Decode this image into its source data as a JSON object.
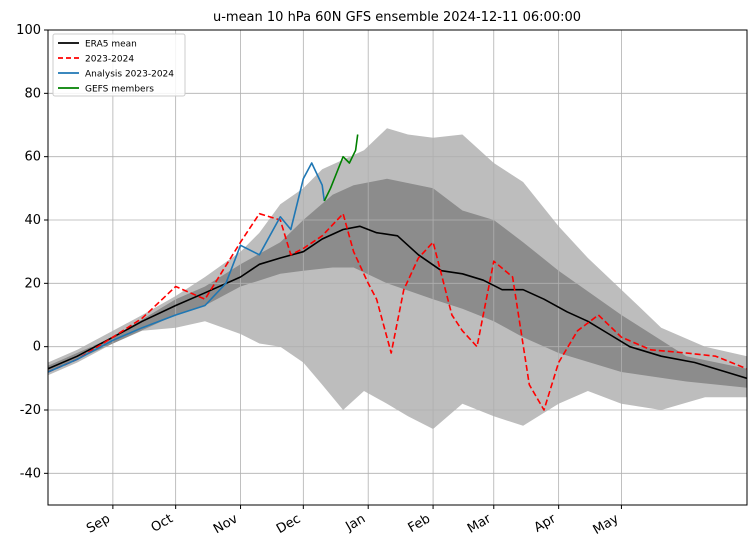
{
  "chart_data": {
    "type": "line",
    "title": "u-mean 10 hPa 60N GFS ensemble 2024-12-11 06:00:00",
    "xlabel": "",
    "ylabel": "",
    "ylim": [
      -50,
      100
    ],
    "xlim": [
      "2023-08-01",
      "2024-06-30"
    ],
    "y_ticks": [
      -40,
      -20,
      0,
      20,
      40,
      60,
      80,
      100
    ],
    "x_ticks": [
      {
        "label": "Sep",
        "date": "2023-09-01"
      },
      {
        "label": "Oct",
        "date": "2023-10-01"
      },
      {
        "label": "Nov",
        "date": "2023-11-01"
      },
      {
        "label": "Dec",
        "date": "2023-12-01"
      },
      {
        "label": "Jan",
        "date": "2024-01-01"
      },
      {
        "label": "Feb",
        "date": "2024-02-01"
      },
      {
        "label": "Mar",
        "date": "2024-03-01"
      },
      {
        "label": "Apr",
        "date": "2024-04-01"
      },
      {
        "label": "May",
        "date": "2024-05-01"
      }
    ],
    "grid": true,
    "legend_position": "top-left",
    "legend": [
      {
        "label": "ERA5 mean",
        "color": "#000000",
        "style": "solid"
      },
      {
        "label": "2023-2024",
        "color": "#ff0000",
        "style": "dashed"
      },
      {
        "label": "Analysis 2023-2024",
        "color": "#1f77b4",
        "style": "solid"
      },
      {
        "label": "GEFS members",
        "color": "#008000",
        "style": "solid"
      }
    ],
    "bands": [
      {
        "name": "min-max",
        "color": "#bdbdbd",
        "points": [
          [
            "2023-08-01",
            -5,
            -9
          ],
          [
            "2023-08-15",
            -1,
            -5
          ],
          [
            "2023-09-01",
            5,
            1
          ],
          [
            "2023-09-15",
            10,
            5
          ],
          [
            "2023-10-01",
            16,
            6
          ],
          [
            "2023-10-15",
            22,
            8
          ],
          [
            "2023-11-01",
            30,
            4
          ],
          [
            "2023-11-10",
            36,
            1
          ],
          [
            "2023-11-20",
            45,
            0
          ],
          [
            "2023-12-01",
            50,
            -5
          ],
          [
            "2023-12-10",
            56,
            -12
          ],
          [
            "2023-12-20",
            59,
            -20
          ],
          [
            "2023-12-30",
            62,
            -14
          ],
          [
            "2024-01-10",
            69,
            -18
          ],
          [
            "2024-01-20",
            67,
            -22
          ],
          [
            "2024-02-01",
            66,
            -26
          ],
          [
            "2024-02-15",
            67,
            -18
          ],
          [
            "2024-03-01",
            58,
            -22
          ],
          [
            "2024-03-15",
            52,
            -25
          ],
          [
            "2024-04-01",
            38,
            -18
          ],
          [
            "2024-04-15",
            28,
            -14
          ],
          [
            "2024-05-01",
            18,
            -18
          ],
          [
            "2024-05-20",
            6,
            -20
          ],
          [
            "2024-06-10",
            0,
            -16
          ],
          [
            "2024-06-30",
            -3,
            -16
          ]
        ]
      },
      {
        "name": "interquartile",
        "color": "#8c8c8c",
        "points": [
          [
            "2023-08-01",
            -6,
            -8
          ],
          [
            "2023-09-01",
            3,
            1
          ],
          [
            "2023-10-01",
            15,
            10
          ],
          [
            "2023-10-15",
            19,
            13
          ],
          [
            "2023-11-01",
            26,
            19
          ],
          [
            "2023-11-20",
            33,
            23
          ],
          [
            "2023-12-01",
            40,
            24
          ],
          [
            "2023-12-15",
            48,
            25
          ],
          [
            "2023-12-25",
            51,
            25
          ],
          [
            "2024-01-10",
            53,
            20
          ],
          [
            "2024-02-01",
            50,
            15
          ],
          [
            "2024-02-15",
            43,
            12
          ],
          [
            "2024-03-01",
            40,
            8
          ],
          [
            "2024-03-15",
            33,
            3
          ],
          [
            "2024-04-01",
            24,
            -2
          ],
          [
            "2024-05-01",
            10,
            -8
          ],
          [
            "2024-06-01",
            -3,
            -11
          ],
          [
            "2024-06-30",
            -7,
            -13
          ]
        ]
      }
    ],
    "series": [
      {
        "name": "ERA5 mean",
        "color": "#000000",
        "style": "solid",
        "x": [
          "2023-08-01",
          "2023-08-15",
          "2023-09-01",
          "2023-09-15",
          "2023-10-01",
          "2023-10-15",
          "2023-11-01",
          "2023-11-10",
          "2023-11-20",
          "2023-12-01",
          "2023-12-10",
          "2023-12-20",
          "2023-12-28",
          "2024-01-05",
          "2024-01-15",
          "2024-01-25",
          "2024-02-05",
          "2024-02-15",
          "2024-02-25",
          "2024-03-05",
          "2024-03-15",
          "2024-03-25",
          "2024-04-05",
          "2024-04-15",
          "2024-04-25",
          "2024-05-05",
          "2024-05-20",
          "2024-06-05",
          "2024-06-20",
          "2024-06-30"
        ],
        "y": [
          -7,
          -3,
          3,
          8,
          13,
          17,
          22,
          26,
          28,
          30,
          34,
          37,
          38,
          36,
          35,
          29,
          24,
          23,
          21,
          18,
          18,
          15,
          11,
          8,
          4,
          0,
          -3,
          -5,
          -8,
          -10
        ]
      },
      {
        "name": "2023-2024",
        "color": "#ff0000",
        "style": "dashed",
        "x": [
          "2023-08-01",
          "2023-08-15",
          "2023-09-01",
          "2023-09-15",
          "2023-10-01",
          "2023-10-15",
          "2023-11-01",
          "2023-11-10",
          "2023-11-20",
          "2023-11-25",
          "2023-12-01",
          "2023-12-10",
          "2023-12-20",
          "2023-12-25",
          "2024-01-01",
          "2024-01-05",
          "2024-01-12",
          "2024-01-18",
          "2024-01-25",
          "2024-02-01",
          "2024-02-10",
          "2024-02-15",
          "2024-02-22",
          "2024-03-01",
          "2024-03-10",
          "2024-03-18",
          "2024-03-25",
          "2024-04-01",
          "2024-04-10",
          "2024-04-20",
          "2024-05-01",
          "2024-05-15",
          "2024-06-01",
          "2024-06-15",
          "2024-06-30"
        ],
        "y": [
          -8,
          -4,
          3,
          9,
          19,
          15,
          33,
          42,
          40,
          29,
          31,
          35,
          42,
          30,
          20,
          15,
          -2,
          18,
          28,
          33,
          10,
          5,
          0,
          27,
          22,
          -12,
          -20,
          -5,
          5,
          10,
          3,
          -1,
          -2,
          -3,
          -7
        ]
      },
      {
        "name": "Analysis 2023-2024",
        "color": "#1f77b4",
        "style": "solid",
        "x": [
          "2023-08-01",
          "2023-08-15",
          "2023-09-01",
          "2023-09-15",
          "2023-10-01",
          "2023-10-15",
          "2023-10-25",
          "2023-11-01",
          "2023-11-10",
          "2023-11-20",
          "2023-11-25",
          "2023-12-01",
          "2023-12-05",
          "2023-12-10",
          "2023-12-11"
        ],
        "y": [
          -8,
          -4,
          2,
          6,
          10,
          13,
          20,
          32,
          29,
          41,
          37,
          53,
          58,
          51,
          46
        ]
      },
      {
        "name": "GEFS members",
        "color": "#008000",
        "style": "solid",
        "x": [
          "2023-12-11",
          "2023-12-14",
          "2023-12-17",
          "2023-12-20",
          "2023-12-23",
          "2023-12-26",
          "2023-12-27"
        ],
        "y": [
          46,
          50,
          55,
          60,
          58,
          62,
          67
        ]
      }
    ]
  }
}
